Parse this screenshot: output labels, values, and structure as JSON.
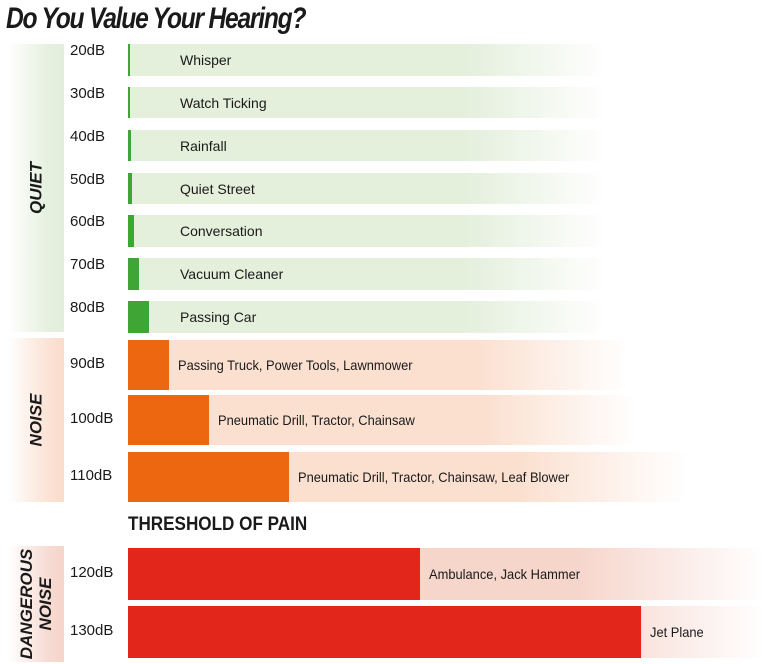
{
  "title": "Do You Value Your Hearing?",
  "threshold_label": "THRESHOLD OF PAIN",
  "colors": {
    "quiet": "#3fa535",
    "noise": "#ec670f",
    "dangerous": "#e3261c"
  },
  "chart_data": {
    "type": "bar",
    "orientation": "horizontal",
    "title": "Do You Value Your Hearing?",
    "groups": [
      {
        "name": "QUIET",
        "color": "#3fa535"
      },
      {
        "name": "NOISE",
        "color": "#ec670f"
      },
      {
        "name": "DANGEROUS NOISE",
        "color": "#e3261c"
      }
    ],
    "rows": [
      {
        "group": "QUIET",
        "level": "20dB",
        "value": 20,
        "label": "Whisper"
      },
      {
        "group": "QUIET",
        "level": "30dB",
        "value": 30,
        "label": "Watch Ticking"
      },
      {
        "group": "QUIET",
        "level": "40dB",
        "value": 40,
        "label": "Rainfall"
      },
      {
        "group": "QUIET",
        "level": "50dB",
        "value": 50,
        "label": "Quiet Street"
      },
      {
        "group": "QUIET",
        "level": "60dB",
        "value": 60,
        "label": "Conversation"
      },
      {
        "group": "QUIET",
        "level": "70dB",
        "value": 70,
        "label": "Vacuum Cleaner"
      },
      {
        "group": "QUIET",
        "level": "80dB",
        "value": 80,
        "label": "Passing Car"
      },
      {
        "group": "NOISE",
        "level": "90dB",
        "value": 90,
        "label": "Passing Truck, Power Tools, Lawnmower"
      },
      {
        "group": "NOISE",
        "level": "100dB",
        "value": 100,
        "label": "Pneumatic Drill, Tractor, Chainsaw"
      },
      {
        "group": "NOISE",
        "level": "110dB",
        "value": 110,
        "label": "Pneumatic Drill, Tractor, Chainsaw, Leaf Blower"
      },
      {
        "group": "DANGEROUS NOISE",
        "level": "120dB",
        "value": 120,
        "label": "Ambulance, Jack Hammer"
      },
      {
        "group": "DANGEROUS NOISE",
        "level": "130dB",
        "value": 130,
        "label": "Jet Plane"
      }
    ]
  }
}
